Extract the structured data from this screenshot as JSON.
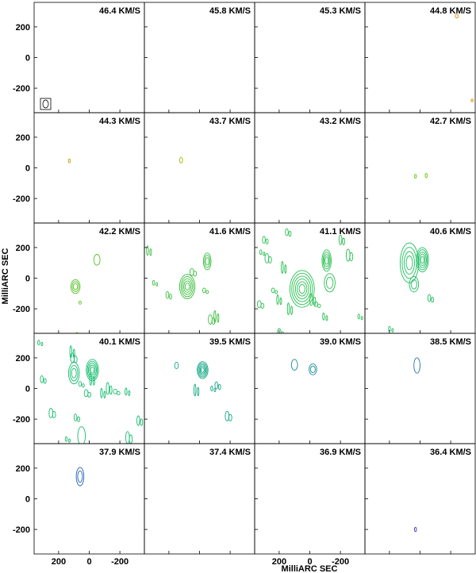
{
  "chart_data": {
    "type": "contour-channel-map",
    "xlabel": "MilliARC SEC",
    "ylabel": "MilliARC SEC",
    "x_ticks": [
      "200",
      "0",
      "-200"
    ],
    "y_ticks": [
      "200",
      "0",
      "-200"
    ],
    "xlim": [
      360,
      -360
    ],
    "ylim": [
      -360,
      360
    ],
    "grid": "4x5",
    "beam_marker": true,
    "panels": [
      {
        "label": "46.4 KM/S",
        "color": "#000000",
        "sources": [],
        "noise": []
      },
      {
        "label": "45.8 KM/S",
        "color": "#000000",
        "sources": [],
        "noise": []
      },
      {
        "label": "45.3 KM/S",
        "color": "#000000",
        "sources": [],
        "noise": []
      },
      {
        "label": "44.8 KM/S",
        "color": "#e08a00",
        "sources": [
          {
            "x": -240,
            "y": 270,
            "rx": 10,
            "ry": 12,
            "levels": 1
          },
          {
            "x": -340,
            "y": -280,
            "rx": 3,
            "ry": 8,
            "levels": 1
          }
        ],
        "noise": []
      },
      {
        "label": "44.3 KM/S",
        "color": "#b8a400",
        "sources": [
          {
            "x": 130,
            "y": 45,
            "rx": 6,
            "ry": 12,
            "levels": 1
          }
        ],
        "noise": []
      },
      {
        "label": "43.7 KM/S",
        "color": "#a8b400",
        "sources": [
          {
            "x": 120,
            "y": 50,
            "rx": 10,
            "ry": 18,
            "levels": 1
          }
        ],
        "noise": []
      },
      {
        "label": "43.2 KM/S",
        "color": "#000000",
        "sources": [],
        "noise": []
      },
      {
        "label": "42.7 KM/S",
        "color": "#6cc000",
        "sources": [
          {
            "x": 30,
            "y": -55,
            "rx": 5,
            "ry": 12,
            "levels": 1
          },
          {
            "x": -40,
            "y": -50,
            "rx": 5,
            "ry": 14,
            "levels": 1
          }
        ],
        "noise": []
      },
      {
        "label": "42.2 KM/S",
        "color": "#55c020",
        "sources": [
          {
            "x": 90,
            "y": -55,
            "rx": 30,
            "ry": 45,
            "levels": 3
          },
          {
            "x": -50,
            "y": 120,
            "rx": 20,
            "ry": 35,
            "levels": 1
          },
          {
            "x": 60,
            "y": -160,
            "rx": 8,
            "ry": 10,
            "levels": 1
          }
        ],
        "noise": [
          [
            80,
            -370
          ]
        ]
      },
      {
        "label": "41.6 KM/S",
        "color": "#3cc040",
        "sources": [
          {
            "x": 80,
            "y": -55,
            "rx": 50,
            "ry": 80,
            "levels": 5
          },
          {
            "x": -50,
            "y": 110,
            "rx": 25,
            "ry": 55,
            "levels": 3
          }
        ],
        "noise": [
          [
            300,
            -30
          ],
          [
            210,
            -110
          ],
          [
            -70,
            -270
          ],
          [
            -100,
            -250
          ],
          [
            -30,
            -80
          ],
          [
            50,
            40
          ],
          [
            340,
            180
          ]
        ]
      },
      {
        "label": "41.1 KM/S",
        "color": "#28c050",
        "sources": [
          {
            "x": 50,
            "y": -70,
            "rx": 80,
            "ry": 120,
            "levels": 6
          },
          {
            "x": -110,
            "y": 115,
            "rx": 30,
            "ry": 70,
            "levels": 4
          },
          {
            "x": -130,
            "y": -30,
            "rx": 35,
            "ry": 60,
            "levels": 2
          }
        ],
        "noise": [
          [
            320,
            170
          ],
          [
            300,
            250
          ],
          [
            280,
            130
          ],
          [
            180,
            70
          ],
          [
            240,
            -80
          ],
          [
            330,
            -170
          ],
          [
            210,
            -140
          ],
          [
            -10,
            -140
          ],
          [
            -40,
            -170
          ],
          [
            -90,
            -250
          ],
          [
            -200,
            250
          ],
          [
            -250,
            150
          ],
          [
            -320,
            -250
          ],
          [
            150,
            300
          ],
          [
            200,
            -360
          ],
          [
            140,
            -200
          ]
        ]
      },
      {
        "label": "40.6 KM/S",
        "color": "#1ebe60",
        "sources": [
          {
            "x": 70,
            "y": 100,
            "rx": 60,
            "ry": 130,
            "levels": 4
          },
          {
            "x": -15,
            "y": 120,
            "rx": 40,
            "ry": 80,
            "levels": 5
          },
          {
            "x": 40,
            "y": -40,
            "rx": 30,
            "ry": 50,
            "levels": 2
          }
        ],
        "noise": [
          [
            200,
            -330
          ],
          [
            -60,
            -130
          ]
        ]
      },
      {
        "label": "40.1 KM/S",
        "color": "#18bc70",
        "sources": [
          {
            "x": 100,
            "y": 100,
            "rx": 35,
            "ry": 70,
            "levels": 3
          },
          {
            "x": -20,
            "y": 120,
            "rx": 40,
            "ry": 70,
            "levels": 5
          },
          {
            "x": 50,
            "y": -310,
            "rx": 25,
            "ry": 60,
            "levels": 1
          }
        ],
        "noise": [
          [
            330,
            300
          ],
          [
            310,
            60
          ],
          [
            250,
            -160
          ],
          [
            120,
            240
          ],
          [
            60,
            30
          ],
          [
            20,
            -30
          ],
          [
            -80,
            -30
          ],
          [
            -120,
            0
          ],
          [
            -170,
            -20
          ],
          [
            -240,
            -20
          ],
          [
            -320,
            -210
          ],
          [
            -250,
            -320
          ],
          [
            150,
            -330
          ],
          [
            90,
            -190
          ],
          [
            110,
            200
          ],
          [
            -10,
            60
          ]
        ]
      },
      {
        "label": "39.5 KM/S",
        "color": "#14a884",
        "sources": [
          {
            "x": -20,
            "y": 120,
            "rx": 35,
            "ry": 55,
            "levels": 5
          },
          {
            "x": 150,
            "y": 150,
            "rx": 12,
            "ry": 22,
            "levels": 1
          }
        ],
        "noise": [
          [
            -80,
            0
          ],
          [
            -110,
            20
          ],
          [
            -180,
            -180
          ],
          [
            30,
            -10
          ]
        ]
      },
      {
        "label": "39.0 KM/S",
        "color": "#1a8c98",
        "sources": [
          {
            "x": 100,
            "y": 155,
            "rx": 20,
            "ry": 35,
            "levels": 1
          },
          {
            "x": -20,
            "y": 125,
            "rx": 25,
            "ry": 35,
            "levels": 2
          }
        ],
        "noise": []
      },
      {
        "label": "38.5 KM/S",
        "color": "#1e70a8",
        "sources": [
          {
            "x": 20,
            "y": 150,
            "rx": 20,
            "ry": 50,
            "levels": 1
          }
        ],
        "noise": []
      },
      {
        "label": "37.9 KM/S",
        "color": "#2060b4",
        "sources": [
          {
            "x": 60,
            "y": 145,
            "rx": 25,
            "ry": 60,
            "levels": 2
          }
        ],
        "noise": []
      },
      {
        "label": "37.4 KM/S",
        "color": "#000000",
        "sources": [],
        "noise": []
      },
      {
        "label": "36.9 KM/S",
        "color": "#000000",
        "sources": [],
        "noise": []
      },
      {
        "label": "36.4 KM/S",
        "color": "#3030c0",
        "sources": [
          {
            "x": 30,
            "y": -200,
            "rx": 6,
            "ry": 14,
            "levels": 1
          }
        ],
        "noise": []
      }
    ]
  }
}
